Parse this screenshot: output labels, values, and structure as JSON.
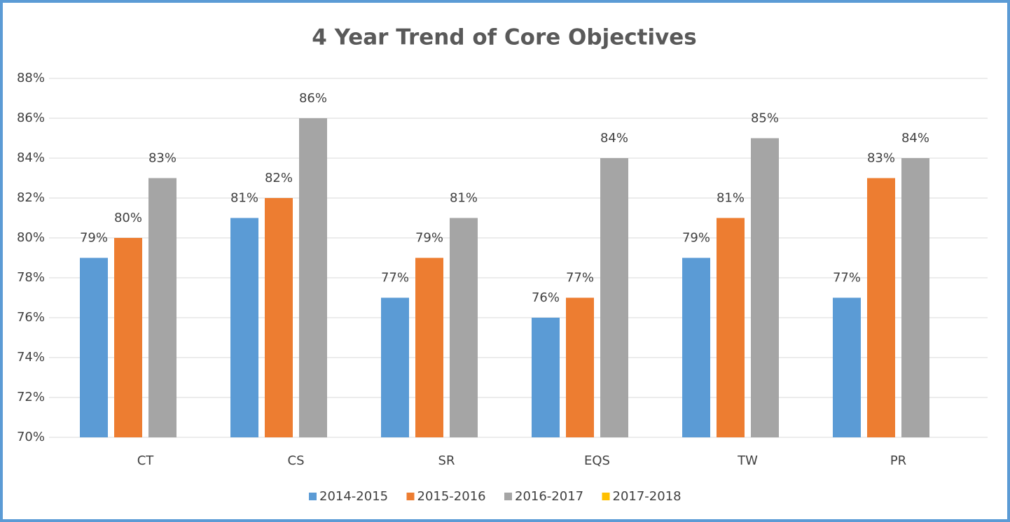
{
  "chart_data": {
    "type": "bar",
    "title": "4 Year Trend of Core Objectives",
    "categories": [
      "CT",
      "CS",
      "SR",
      "EQS",
      "TW",
      "PR"
    ],
    "series": [
      {
        "name": "2014-2015",
        "color": "#5b9bd5",
        "values": [
          79,
          81,
          77,
          76,
          79,
          77
        ],
        "value_labels": [
          "79%",
          "81%",
          "77%",
          "76%",
          "79%",
          "77%"
        ]
      },
      {
        "name": "2015-2016",
        "color": "#ed7d31",
        "values": [
          80,
          82,
          79,
          77,
          81,
          83
        ],
        "value_labels": [
          "80%",
          "82%",
          "79%",
          "77%",
          "81%",
          "83%"
        ]
      },
      {
        "name": "2016-2017",
        "color": "#a5a5a5",
        "values": [
          83,
          86,
          81,
          84,
          85,
          84
        ],
        "value_labels": [
          "83%",
          "86%",
          "81%",
          "84%",
          "85%",
          "84%"
        ]
      },
      {
        "name": "2017-2018",
        "color": "#ffc000",
        "values": [
          null,
          null,
          null,
          null,
          null,
          null
        ],
        "value_labels": [
          null,
          null,
          null,
          null,
          null,
          null
        ]
      }
    ],
    "ylim": [
      70,
      88
    ],
    "yticks": [
      {
        "value": 70,
        "label": "70%"
      },
      {
        "value": 72,
        "label": "72%"
      },
      {
        "value": 74,
        "label": "74%"
      },
      {
        "value": 76,
        "label": "76%"
      },
      {
        "value": 78,
        "label": "78%"
      },
      {
        "value": 80,
        "label": "80%"
      },
      {
        "value": 82,
        "label": "82%"
      },
      {
        "value": 84,
        "label": "84%"
      },
      {
        "value": 86,
        "label": "86%"
      },
      {
        "value": 88,
        "label": "88%"
      }
    ],
    "grid": true,
    "legend": "bottom"
  }
}
